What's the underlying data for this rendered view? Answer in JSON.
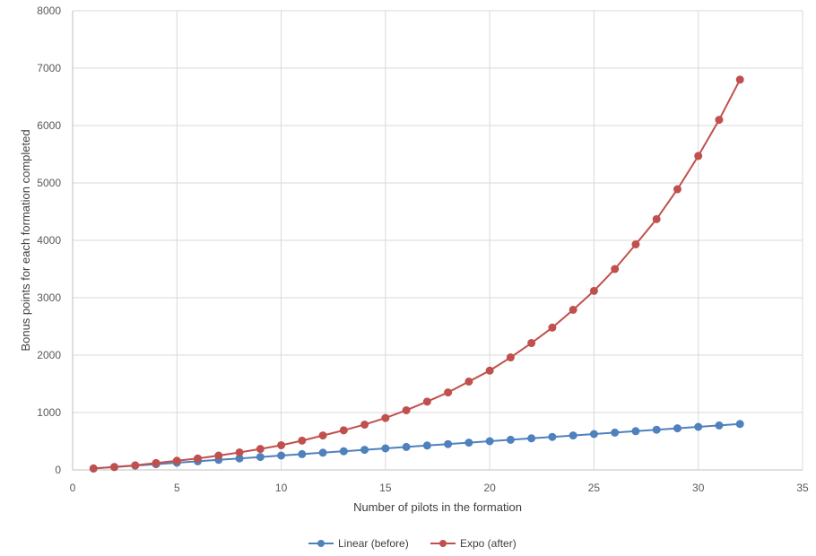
{
  "chart_data": {
    "type": "line",
    "xlabel": "Number of pilots in the formation",
    "ylabel": "Bonus points for each formation completed",
    "xlim": [
      0,
      35
    ],
    "ylim": [
      0,
      8000
    ],
    "xticks": [
      0,
      5,
      10,
      15,
      20,
      25,
      30,
      35
    ],
    "yticks": [
      0,
      1000,
      2000,
      3000,
      4000,
      5000,
      6000,
      7000,
      8000
    ],
    "grid": true,
    "legend_position": "bottom",
    "x": [
      1,
      2,
      3,
      4,
      5,
      6,
      7,
      8,
      9,
      10,
      11,
      12,
      13,
      14,
      15,
      16,
      17,
      18,
      19,
      20,
      21,
      22,
      23,
      24,
      25,
      26,
      27,
      28,
      29,
      30,
      31,
      32
    ],
    "series": [
      {
        "name": "Linear (before)",
        "color": "#4f81bd",
        "values": [
          25,
          50,
          75,
          100,
          125,
          150,
          175,
          200,
          225,
          250,
          275,
          300,
          325,
          350,
          375,
          400,
          425,
          450,
          475,
          500,
          525,
          550,
          575,
          600,
          625,
          650,
          675,
          700,
          725,
          750,
          775,
          800
        ]
      },
      {
        "name": "Expo (after)",
        "color": "#c0504d",
        "values": [
          25,
          50,
          80,
          120,
          160,
          200,
          250,
          305,
          365,
          430,
          510,
          600,
          690,
          790,
          905,
          1040,
          1190,
          1350,
          1540,
          1730,
          1960,
          2210,
          2480,
          2790,
          3120,
          3500,
          3930,
          4370,
          4890,
          5470,
          6100,
          6800
        ]
      }
    ]
  }
}
